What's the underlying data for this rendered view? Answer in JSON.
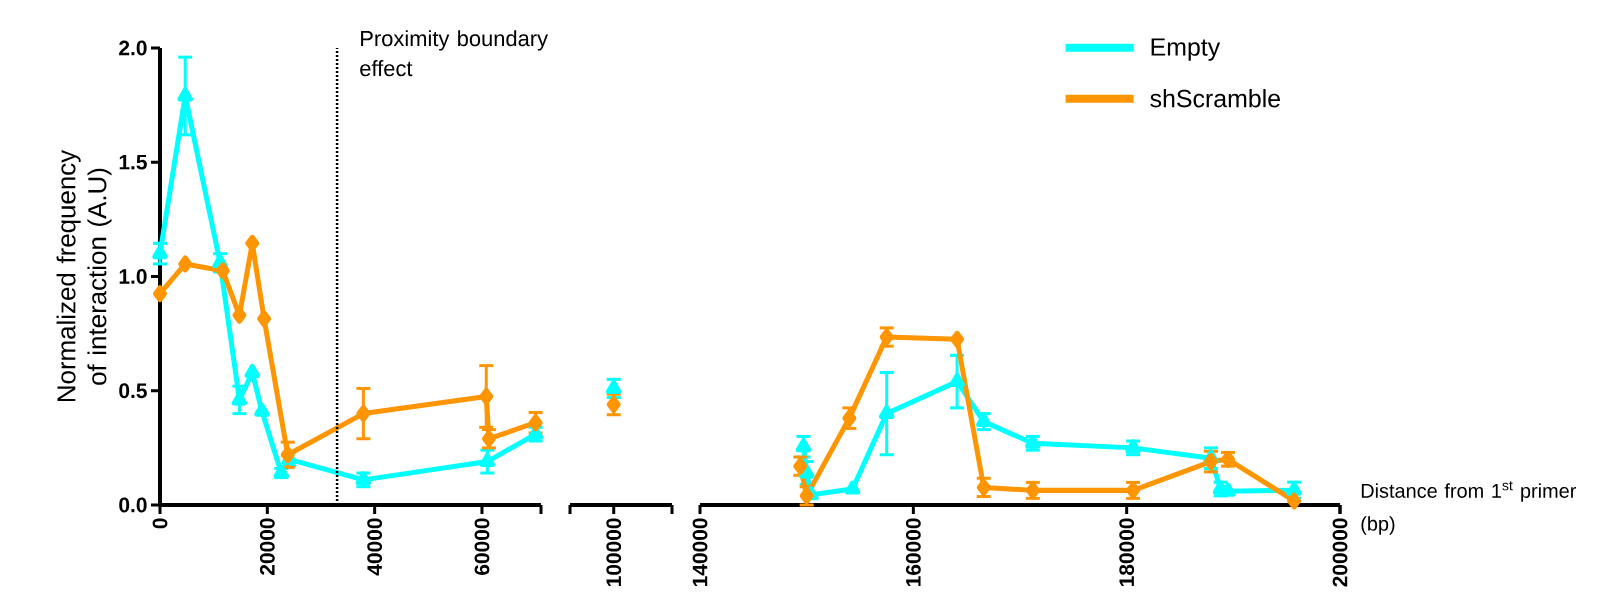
{
  "chart_data": [
    {
      "type": "line",
      "ylabel": "Normalized frequency of interaction (A.U)",
      "xlim": [
        0,
        71000
      ],
      "xticks": [
        0,
        20000,
        40000,
        60000
      ],
      "ylim": [
        0,
        2
      ],
      "yticks": [
        {
          "value": 0,
          "label": "0.0"
        },
        {
          "value": 0.5,
          "label": "0.5"
        },
        {
          "value": 1,
          "label": "1.0"
        },
        {
          "value": 1.5,
          "label": "1.5"
        },
        {
          "value": 2,
          "label": "2.0"
        }
      ],
      "ref_lines": [
        {
          "axis": "x",
          "value": 33000,
          "label": "Proximity boundary effect",
          "line_style": "dotted",
          "color": "#000000"
        }
      ],
      "series": [
        {
          "color": "#00ffff",
          "marker": "triangle",
          "x": [
            0,
            4700,
            11200,
            14800,
            17200,
            19000,
            22600,
            24100,
            37900,
            61000,
            70000
          ],
          "values": [
            1.1,
            1.79,
            1.06,
            0.46,
            0.58,
            0.41,
            0.14,
            0.2,
            0.11,
            0.19,
            0.31
          ],
          "errors": [
            0.045,
            0.17,
            0.04,
            0.06,
            null,
            null,
            0.02,
            0.03,
            0.03,
            0.05,
            0.03
          ]
        },
        {
          "color": "#ff9500",
          "marker": "diamond",
          "x": [
            0,
            4700,
            11700,
            14800,
            17200,
            19400,
            23800,
            37900,
            60800,
            61300,
            70000
          ],
          "values": [
            0.925,
            1.055,
            1.025,
            0.83,
            1.145,
            0.815,
            0.22,
            0.4,
            0.475,
            0.29,
            0.36
          ],
          "errors": [
            null,
            null,
            null,
            null,
            null,
            null,
            0.055,
            0.11,
            0.135,
            0.04,
            0.045
          ]
        }
      ]
    },
    {
      "type": "line",
      "categories": [
        "100000"
      ],
      "ylim": [
        0,
        2
      ],
      "tick_labels": "x",
      "series": [
        {
          "color": "#00ffff",
          "marker": "triangle",
          "values": [
            0.51
          ],
          "errors": [
            0.04
          ]
        },
        {
          "color": "#ff9500",
          "marker": "diamond",
          "values": [
            0.44
          ],
          "errors": [
            0.045
          ]
        }
      ]
    },
    {
      "type": "line",
      "xlabel": "Distance from 1$^{st}$ primer (bp)",
      "xlim": [
        140000,
        200000
      ],
      "xticks": [
        140000,
        160000,
        180000,
        200000
      ],
      "ylim": [
        0,
        2
      ],
      "tick_labels": "x",
      "legend": "top right",
      "series": [
        {
          "name": "Empty",
          "color": "#00ffff",
          "marker": "triangle",
          "x": [
            149700,
            150000,
            150400,
            154300,
            157500,
            164100,
            166600,
            171200,
            180600,
            187900,
            188800,
            189500,
            195700
          ],
          "values": [
            0.255,
            0.14,
            0.045,
            0.07,
            0.4,
            0.54,
            0.365,
            0.27,
            0.25,
            0.205,
            0.07,
            0.06,
            0.065
          ],
          "errors": [
            0.045,
            0.05,
            null,
            null,
            0.18,
            0.115,
            0.035,
            0.03,
            0.03,
            0.045,
            0.03,
            null,
            0.035
          ]
        },
        {
          "name": "shScramble",
          "color": "#ff9500",
          "marker": "diamond",
          "x": [
            149400,
            150000,
            154000,
            157500,
            164100,
            166600,
            171200,
            180600,
            187900,
            189500,
            195700
          ],
          "values": [
            0.17,
            0.04,
            0.38,
            0.735,
            0.725,
            0.077,
            0.064,
            0.064,
            0.19,
            0.2,
            0.018
          ],
          "errors": [
            0.04,
            0.04,
            0.045,
            0.04,
            null,
            0.04,
            0.035,
            0.035,
            0.045,
            0.03,
            null
          ]
        }
      ]
    }
  ]
}
